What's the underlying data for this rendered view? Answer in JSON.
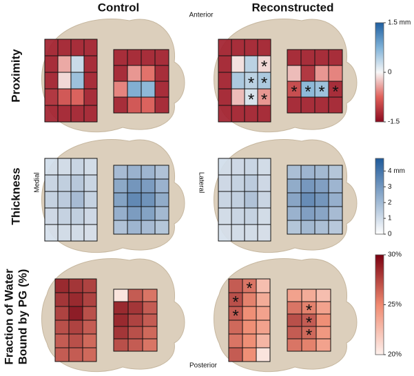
{
  "columns": [
    "Control",
    "Reconstructed"
  ],
  "orientation": {
    "anterior": "Anterior",
    "posterior": "Posterior",
    "medial": "Medial",
    "lateral": "Lateral"
  },
  "chart_data": [
    {
      "type": "heatmap",
      "row_label": [
        "Proximity"
      ],
      "colors": [
        "#8b0a1f",
        "#e0605a",
        "#f7f7f7",
        "#7fb2d8",
        "#1f5fa0"
      ],
      "lim": [
        -1.5,
        1.5
      ],
      "ticks": [
        {
          "value": 1.5,
          "label": "1.5 mm"
        },
        0,
        -1.5
      ],
      "panels": [
        {
          "grids": [
            {
              "values": [
                [
                  -1.3,
                  -1.3,
                  -1.3,
                  -1.3
                ],
                [
                  -1.3,
                  -0.4,
                  0.3,
                  -1.3
                ],
                [
                  -1.3,
                  -0.15,
                  0.6,
                  -1.3
                ],
                [
                  -1.2,
                  -0.9,
                  -0.8,
                  -1.3
                ],
                [
                  -1.3,
                  -1.3,
                  -1.3,
                  -1.3
                ]
              ]
            },
            {
              "values": [
                [
                  -1.3,
                  -1.3,
                  -1.3,
                  -1.3
                ],
                [
                  -1.3,
                  -0.5,
                  -0.7,
                  -1.3
                ],
                [
                  -0.6,
                  0.8,
                  0.7,
                  -1.3
                ],
                [
                  -1.3,
                  -0.9,
                  -0.8,
                  -1.3
                ]
              ]
            }
          ],
          "annotations": []
        },
        {
          "grids": [
            {
              "values": [
                [
                  -1.3,
                  -1.3,
                  -1.3,
                  -1.3
                ],
                [
                  -1.3,
                  -0.1,
                  0.4,
                  -0.15
                ],
                [
                  -1.3,
                  0.5,
                  0.4,
                  0.5
                ],
                [
                  -1.3,
                  -0.3,
                  0.2,
                  -0.5
                ],
                [
                  -1.3,
                  -1.3,
                  -1.3,
                  -1.3
                ]
              ]
            },
            {
              "values": [
                [
                  -1.3,
                  -1.3,
                  -1.3,
                  -1.3
                ],
                [
                  -0.3,
                  -1.2,
                  -0.5,
                  -0.6
                ],
                [
                  -1.0,
                  0.7,
                  0.6,
                  -1.3
                ],
                [
                  -1.3,
                  -1.3,
                  -1.3,
                  -1.3
                ]
              ]
            }
          ],
          "annotations": [
            {
              "grid": 0,
              "row": 1,
              "col": 3,
              "label": "*"
            },
            {
              "grid": 0,
              "row": 2,
              "col": 2,
              "label": "*"
            },
            {
              "grid": 0,
              "row": 2,
              "col": 3,
              "label": "*"
            },
            {
              "grid": 0,
              "row": 3,
              "col": 2,
              "label": "*"
            },
            {
              "grid": 0,
              "row": 3,
              "col": 3,
              "label": "*"
            },
            {
              "grid": 1,
              "row": 2,
              "col": 0,
              "label": "*"
            },
            {
              "grid": 1,
              "row": 2,
              "col": 1,
              "label": "*"
            },
            {
              "grid": 1,
              "row": 2,
              "col": 2,
              "label": "*"
            },
            {
              "grid": 1,
              "row": 2,
              "col": 3,
              "label": "*"
            }
          ]
        }
      ]
    },
    {
      "type": "heatmap",
      "row_label": [
        "Thickness"
      ],
      "colors": [
        "#ffffff",
        "#1f5a9a"
      ],
      "lim": [
        0,
        4.8
      ],
      "ticks": [
        {
          "value": 4,
          "label": "4 mm"
        },
        3,
        2,
        1,
        0
      ],
      "panels": [
        {
          "grids": [
            {
              "values": [
                [
                  1,
                  1,
                  1.2,
                  1
                ],
                [
                  1.2,
                  1.4,
                  1.6,
                  1.2
                ],
                [
                  1.3,
                  1.5,
                  2.0,
                  1.3
                ],
                [
                  1.1,
                  1.3,
                  1.4,
                  1.1
                ],
                [
                  0.9,
                  1,
                  1,
                  0.9
                ]
              ]
            },
            {
              "values": [
                [
                  2,
                  2.3,
                  2.2,
                  1.8
                ],
                [
                  2.6,
                  3.2,
                  3.0,
                  2.3
                ],
                [
                  2.8,
                  3.6,
                  3.3,
                  2.5
                ],
                [
                  2.4,
                  3.0,
                  2.8,
                  2.1
                ],
                [
                  1.8,
                  2.2,
                  2.0,
                  1.7
                ]
              ]
            }
          ],
          "annotations": []
        },
        {
          "grids": [
            {
              "values": [
                [
                  1,
                  1.1,
                  1.2,
                  1
                ],
                [
                  1.1,
                  1.3,
                  1.5,
                  1.1
                ],
                [
                  1.2,
                  1.4,
                  1.8,
                  1.2
                ],
                [
                  1,
                  1.2,
                  1.3,
                  1
                ],
                [
                  0.9,
                  1,
                  1,
                  0.9
                ]
              ]
            },
            {
              "values": [
                [
                  1.9,
                  2.2,
                  2.1,
                  1.7
                ],
                [
                  2.5,
                  3.1,
                  2.9,
                  2.2
                ],
                [
                  2.7,
                  3.5,
                  3.2,
                  2.4
                ],
                [
                  2.3,
                  2.9,
                  2.7,
                  2.0
                ],
                [
                  1.7,
                  2.1,
                  1.9,
                  1.6
                ]
              ]
            }
          ],
          "annotations": []
        }
      ]
    },
    {
      "type": "heatmap",
      "row_label": [
        "Fraction of Water",
        "Bound by PG (%)"
      ],
      "colors": [
        "#fdf0ec",
        "#f08a70",
        "#7a0010"
      ],
      "lim": [
        20,
        30
      ],
      "ticks": [
        {
          "value": 30,
          "label": "30%"
        },
        {
          "value": 25,
          "label": "25%"
        },
        {
          "value": 20,
          "label": "20%"
        }
      ],
      "panels": [
        {
          "grids": [
            {
              "values": [
                [
                  29,
                  28.5,
                  28
                ],
                [
                  28.5,
                  29,
                  28
                ],
                [
                  28,
                  29.5,
                  27.5
                ],
                [
                  27.5,
                  28,
                  27
                ],
                [
                  27,
                  27.5,
                  26.5
                ],
                [
                  27,
                  27,
                  26.5
                ]
              ]
            },
            {
              "values": [
                [
                  20.5,
                  27,
                  26
                ],
                [
                  29,
                  28.5,
                  27
                ],
                [
                  29,
                  28,
                  27
                ],
                [
                  28.5,
                  27.5,
                  26.5
                ],
                [
                  27.5,
                  27,
                  26
                ]
              ]
            }
          ],
          "annotations": []
        },
        {
          "grids": [
            {
              "values": [
                [
                  27,
                  26,
                  22.5
                ],
                [
                  27.5,
                  25.5,
                  23.5
                ],
                [
                  27,
                  25,
                  24
                ],
                [
                  26.5,
                  25,
                  24
                ],
                [
                  26,
                  25,
                  23
                ],
                [
                  27,
                  25,
                  20.5
                ]
              ]
            },
            {
              "values": [
                [
                  24,
                  23.5,
                  22.5
                ],
                [
                  26,
                  25.5,
                  24
                ],
                [
                  27.5,
                  27,
                  25
                ],
                [
                  27,
                  26.5,
                  24.5
                ],
                [
                  26,
                  25.5,
                  24
                ]
              ]
            }
          ],
          "annotations": [
            {
              "grid": 0,
              "row": 0,
              "col": 1,
              "label": "*"
            },
            {
              "grid": 0,
              "row": 1,
              "col": 0,
              "label": "*"
            },
            {
              "grid": 0,
              "row": 2,
              "col": 0,
              "label": "*"
            },
            {
              "grid": 1,
              "row": 1,
              "col": 1,
              "label": "*"
            },
            {
              "grid": 1,
              "row": 2,
              "col": 1,
              "label": "*"
            },
            {
              "grid": 1,
              "row": 3,
              "col": 1,
              "label": "*"
            }
          ]
        }
      ]
    }
  ]
}
